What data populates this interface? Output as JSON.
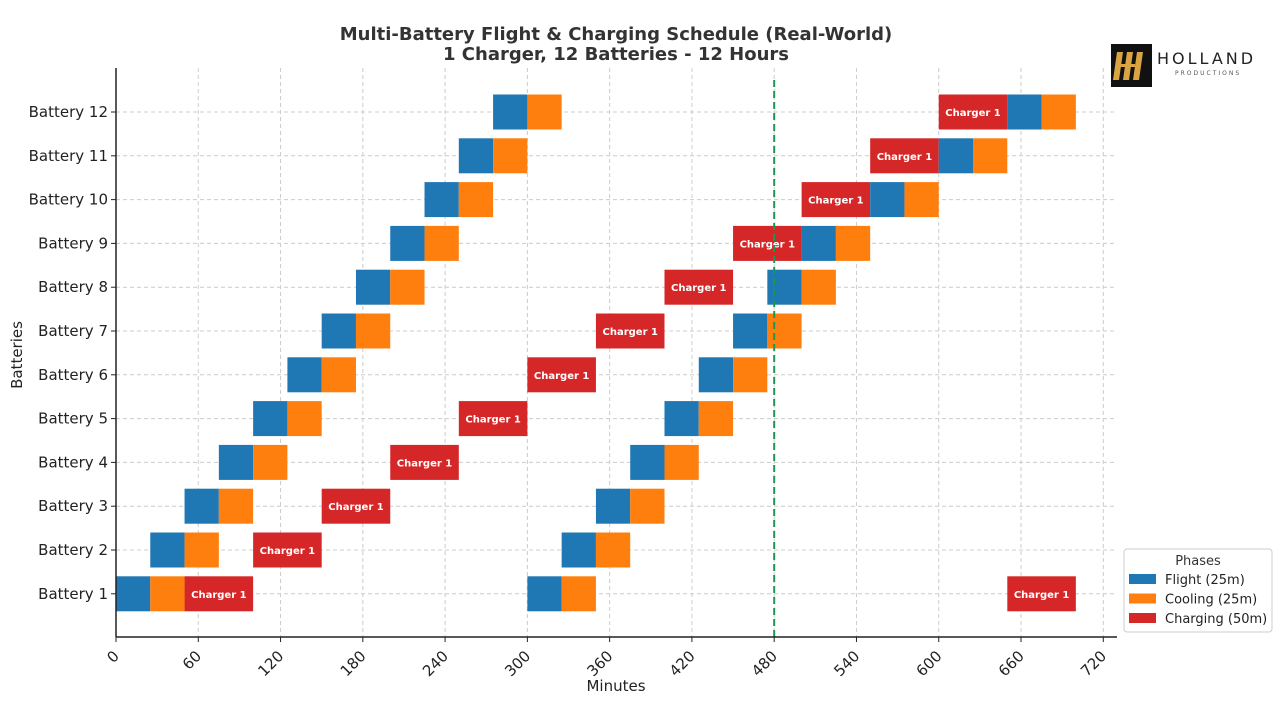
{
  "logo": {
    "word": "HOLLAND",
    "sub": "PRODUCTIONS",
    "name": "holland-productions-logo"
  },
  "chart_data": {
    "type": "gantt",
    "title": "Multi-Battery Flight & Charging Schedule (Real-World)",
    "subtitle": "1 Charger, 12 Batteries - 12 Hours",
    "xlabel": "Minutes",
    "ylabel": "Batteries",
    "xlim": [
      0,
      730
    ],
    "xticks": [
      0,
      60,
      120,
      180,
      240,
      300,
      360,
      420,
      480,
      540,
      600,
      660,
      720
    ],
    "categories": [
      "Battery 1",
      "Battery 2",
      "Battery 3",
      "Battery 4",
      "Battery 5",
      "Battery 6",
      "Battery 7",
      "Battery 8",
      "Battery 9",
      "Battery 10",
      "Battery 11",
      "Battery 12"
    ],
    "grid": true,
    "marker_line": {
      "x": 480,
      "color": "#1a9850",
      "style": "dashed"
    },
    "charger_label": "Charger 1",
    "legend": {
      "title": "Phases",
      "placement": "bottom-right",
      "items": [
        {
          "phase": "flight",
          "label": "Flight (25m)",
          "color": "#1f77b4"
        },
        {
          "phase": "cooling",
          "label": "Cooling (25m)",
          "color": "#ff7f0e"
        },
        {
          "phase": "charging",
          "label": "Charging (50m)",
          "color": "#d62728"
        }
      ]
    },
    "segments": [
      {
        "battery": 1,
        "phase": "flight",
        "start": 0,
        "duration": 25
      },
      {
        "battery": 1,
        "phase": "cooling",
        "start": 25,
        "duration": 25
      },
      {
        "battery": 1,
        "phase": "charging",
        "start": 50,
        "duration": 50
      },
      {
        "battery": 1,
        "phase": "flight",
        "start": 300,
        "duration": 25
      },
      {
        "battery": 1,
        "phase": "cooling",
        "start": 325,
        "duration": 25
      },
      {
        "battery": 1,
        "phase": "charging",
        "start": 650,
        "duration": 50
      },
      {
        "battery": 2,
        "phase": "flight",
        "start": 25,
        "duration": 25
      },
      {
        "battery": 2,
        "phase": "cooling",
        "start": 50,
        "duration": 25
      },
      {
        "battery": 2,
        "phase": "charging",
        "start": 100,
        "duration": 50
      },
      {
        "battery": 2,
        "phase": "flight",
        "start": 325,
        "duration": 25
      },
      {
        "battery": 2,
        "phase": "cooling",
        "start": 350,
        "duration": 25
      },
      {
        "battery": 3,
        "phase": "flight",
        "start": 50,
        "duration": 25
      },
      {
        "battery": 3,
        "phase": "cooling",
        "start": 75,
        "duration": 25
      },
      {
        "battery": 3,
        "phase": "charging",
        "start": 150,
        "duration": 50
      },
      {
        "battery": 3,
        "phase": "flight",
        "start": 350,
        "duration": 25
      },
      {
        "battery": 3,
        "phase": "cooling",
        "start": 375,
        "duration": 25
      },
      {
        "battery": 4,
        "phase": "flight",
        "start": 75,
        "duration": 25
      },
      {
        "battery": 4,
        "phase": "cooling",
        "start": 100,
        "duration": 25
      },
      {
        "battery": 4,
        "phase": "charging",
        "start": 200,
        "duration": 50
      },
      {
        "battery": 4,
        "phase": "flight",
        "start": 375,
        "duration": 25
      },
      {
        "battery": 4,
        "phase": "cooling",
        "start": 400,
        "duration": 25
      },
      {
        "battery": 5,
        "phase": "flight",
        "start": 100,
        "duration": 25
      },
      {
        "battery": 5,
        "phase": "cooling",
        "start": 125,
        "duration": 25
      },
      {
        "battery": 5,
        "phase": "charging",
        "start": 250,
        "duration": 50
      },
      {
        "battery": 5,
        "phase": "flight",
        "start": 400,
        "duration": 25
      },
      {
        "battery": 5,
        "phase": "cooling",
        "start": 425,
        "duration": 25
      },
      {
        "battery": 6,
        "phase": "flight",
        "start": 125,
        "duration": 25
      },
      {
        "battery": 6,
        "phase": "cooling",
        "start": 150,
        "duration": 25
      },
      {
        "battery": 6,
        "phase": "charging",
        "start": 300,
        "duration": 50
      },
      {
        "battery": 6,
        "phase": "flight",
        "start": 425,
        "duration": 25
      },
      {
        "battery": 6,
        "phase": "cooling",
        "start": 450,
        "duration": 25
      },
      {
        "battery": 7,
        "phase": "flight",
        "start": 150,
        "duration": 25
      },
      {
        "battery": 7,
        "phase": "cooling",
        "start": 175,
        "duration": 25
      },
      {
        "battery": 7,
        "phase": "charging",
        "start": 350,
        "duration": 50
      },
      {
        "battery": 7,
        "phase": "flight",
        "start": 450,
        "duration": 25
      },
      {
        "battery": 7,
        "phase": "cooling",
        "start": 475,
        "duration": 25
      },
      {
        "battery": 8,
        "phase": "flight",
        "start": 175,
        "duration": 25
      },
      {
        "battery": 8,
        "phase": "cooling",
        "start": 200,
        "duration": 25
      },
      {
        "battery": 8,
        "phase": "charging",
        "start": 400,
        "duration": 50
      },
      {
        "battery": 8,
        "phase": "flight",
        "start": 475,
        "duration": 25
      },
      {
        "battery": 8,
        "phase": "cooling",
        "start": 500,
        "duration": 25
      },
      {
        "battery": 9,
        "phase": "flight",
        "start": 200,
        "duration": 25
      },
      {
        "battery": 9,
        "phase": "cooling",
        "start": 225,
        "duration": 25
      },
      {
        "battery": 9,
        "phase": "charging",
        "start": 450,
        "duration": 50
      },
      {
        "battery": 9,
        "phase": "flight",
        "start": 500,
        "duration": 25
      },
      {
        "battery": 9,
        "phase": "cooling",
        "start": 525,
        "duration": 25
      },
      {
        "battery": 10,
        "phase": "flight",
        "start": 225,
        "duration": 25
      },
      {
        "battery": 10,
        "phase": "cooling",
        "start": 250,
        "duration": 25
      },
      {
        "battery": 10,
        "phase": "charging",
        "start": 500,
        "duration": 50
      },
      {
        "battery": 10,
        "phase": "flight",
        "start": 550,
        "duration": 25
      },
      {
        "battery": 10,
        "phase": "cooling",
        "start": 575,
        "duration": 25
      },
      {
        "battery": 11,
        "phase": "flight",
        "start": 250,
        "duration": 25
      },
      {
        "battery": 11,
        "phase": "cooling",
        "start": 275,
        "duration": 25
      },
      {
        "battery": 11,
        "phase": "charging",
        "start": 550,
        "duration": 50
      },
      {
        "battery": 11,
        "phase": "flight",
        "start": 600,
        "duration": 25
      },
      {
        "battery": 11,
        "phase": "cooling",
        "start": 625,
        "duration": 25
      },
      {
        "battery": 12,
        "phase": "flight",
        "start": 275,
        "duration": 25
      },
      {
        "battery": 12,
        "phase": "cooling",
        "start": 300,
        "duration": 25
      },
      {
        "battery": 12,
        "phase": "charging",
        "start": 600,
        "duration": 50
      },
      {
        "battery": 12,
        "phase": "flight",
        "start": 650,
        "duration": 25
      },
      {
        "battery": 12,
        "phase": "cooling",
        "start": 675,
        "duration": 25
      }
    ]
  }
}
